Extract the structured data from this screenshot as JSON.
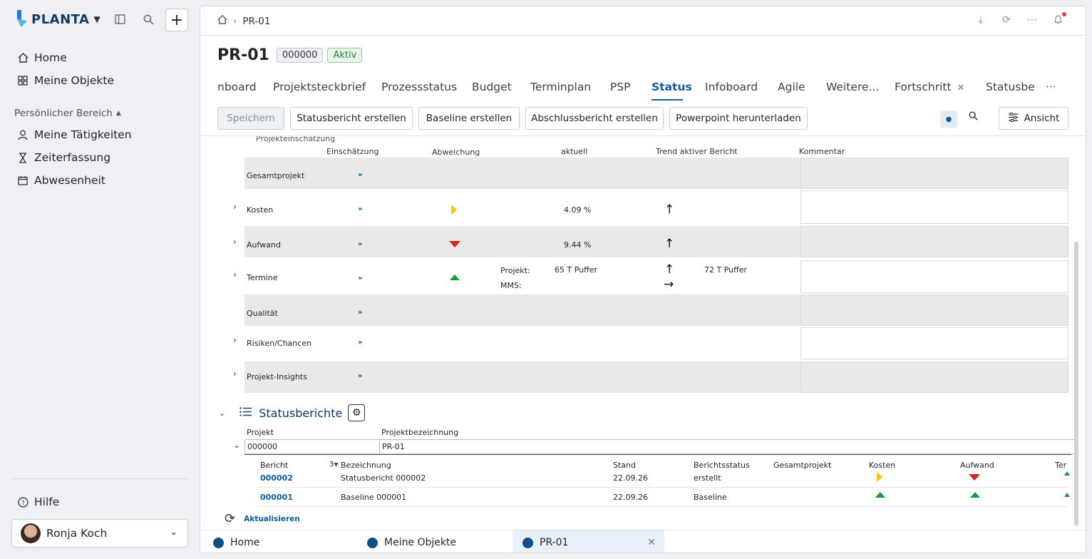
{
  "app": {
    "logo_text": "PLANTA"
  },
  "sidebar": {
    "items": [
      {
        "label": "Home",
        "icon": "home-icon"
      },
      {
        "label": "Meine Objekte",
        "icon": "grid-icon"
      }
    ],
    "section_label": "Persönlicher Bereich",
    "section_items": [
      {
        "label": "Meine Tätigkeiten",
        "icon": "person-icon"
      },
      {
        "label": "Zeiterfassung",
        "icon": "hourglass-icon"
      },
      {
        "label": "Abwesenheit",
        "icon": "calendar-icon"
      }
    ],
    "help_label": "Hilfe",
    "user_name": "Ronja Koch"
  },
  "breadcrumb": {
    "current": "PR-01"
  },
  "header": {
    "title": "PR-01",
    "number_badge": "000000",
    "status_badge": "Aktiv"
  },
  "tabs": [
    {
      "label": "nboard"
    },
    {
      "label": "Projektsteckbrief"
    },
    {
      "label": "Prozessstatus"
    },
    {
      "label": "Budget"
    },
    {
      "label": "Terminplan"
    },
    {
      "label": "PSP"
    },
    {
      "label": "Status",
      "active": true
    },
    {
      "label": "Infoboard"
    },
    {
      "label": "Agile"
    },
    {
      "label": "Weitere..."
    },
    {
      "label": "Fortschritt",
      "closable": true
    },
    {
      "label": "Statusber"
    }
  ],
  "toolbar": {
    "save": "Speichern",
    "status_report": "Statusbericht erstellen",
    "baseline": "Baseline erstellen",
    "final_report": "Abschlussbericht erstellen",
    "powerpoint": "Powerpoint herunterladen",
    "view": "Ansicht"
  },
  "assessment": {
    "section_label": "Projekteinschätzung",
    "headers": {
      "estimate": "Einschätzung",
      "deviation": "Abweichung",
      "current": "aktuell",
      "trend": "Trend aktiver Bericht",
      "comment": "Kommentar"
    },
    "more_symbol": "»",
    "rows": {
      "gesamt": "Gesamtprojekt",
      "kosten": "Kosten",
      "kosten_value": "4.09 %",
      "aufwand": "Aufwand",
      "aufwand_value": "9.44 %",
      "termine": "Termine",
      "termine_projekt_label": "Projekt:",
      "termine_mms_label": "MMS:",
      "termine_projekt_value": "65 T Puffer",
      "termine_trend_value": "72 T Puffer",
      "qualitaet": "Qualität",
      "risiken": "Risiken/Chancen",
      "insights": "Projekt-Insights"
    }
  },
  "statusberichte": {
    "title": "Statusberichte",
    "project_header": "Projekt",
    "project_name_header": "Projektbezeichnung",
    "project_value": "000000",
    "project_name_value": "PR-01",
    "columns": {
      "bericht": "Bericht",
      "sort_index": "3",
      "bezeichnung": "Bezeichnung",
      "stand": "Stand",
      "berichtsstatus": "Berichtsstatus",
      "gesamtprojekt": "Gesamtprojekt",
      "kosten": "Kosten",
      "aufwand": "Aufwand",
      "termine": "Ter"
    },
    "reports": [
      {
        "id": "000002",
        "name": "Statusbericht 000002",
        "date": "22.09.26",
        "status": "erstellt"
      },
      {
        "id": "000001",
        "name": "Baseline 000001",
        "date": "22.09.26",
        "status": "Baseline"
      }
    ],
    "refresh_label": "Aktualisieren"
  },
  "bottom_tabs": [
    {
      "label": "Home"
    },
    {
      "label": "Meine Objekte"
    },
    {
      "label": "PR-01",
      "active": true
    }
  ],
  "colors": {
    "accent": "#0b5fa5",
    "green": "#1a9b2e",
    "red": "#d9261c",
    "yellow": "#f2c811"
  }
}
